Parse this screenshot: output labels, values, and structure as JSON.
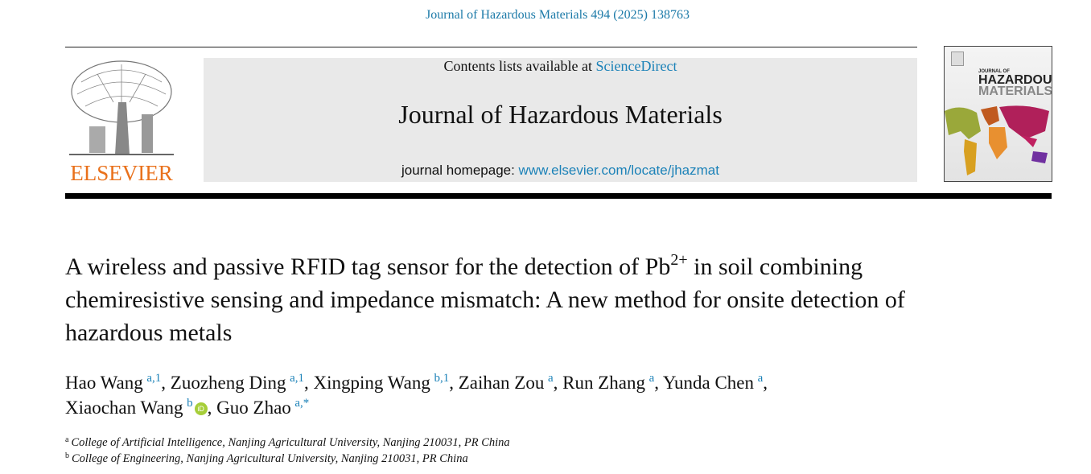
{
  "journal_reference": "Journal of Hazardous Materials 494 (2025) 138763",
  "header": {
    "publisher_logo_text": "ELSEVIER",
    "contents_prefix": "Contents lists available at ",
    "contents_link": "ScienceDirect",
    "journal_title": "Journal of Hazardous Materials",
    "homepage_prefix": "journal homepage: ",
    "homepage_link": "www.elsevier.com/locate/jhazmat",
    "cover_text": "JOURNAL OF HAZARDOUS MATERIALS",
    "colors": {
      "link": "#1c82b8",
      "elsevier_orange": "#e9711c",
      "box_bg": "#e9e9e9"
    }
  },
  "article": {
    "title_part1": "A wireless and passive RFID tag sensor for the detection of Pb",
    "title_sup": "2+",
    "title_part2": " in soil combining chemiresistive sensing and impedance mismatch: A new method for onsite detection of hazardous metals",
    "authors": [
      {
        "name": "Hao Wang",
        "sup": "a,1",
        "sep": ", "
      },
      {
        "name": "Zuozheng Ding",
        "sup": "a,1",
        "sep": ", "
      },
      {
        "name": "Xingping Wang",
        "sup": "b,1",
        "sep": ", "
      },
      {
        "name": "Zaihan Zou",
        "sup": "a",
        "sep": ", "
      },
      {
        "name": "Run Zhang",
        "sup": "a",
        "sep": ", "
      },
      {
        "name": "Yunda Chen",
        "sup": "a",
        "sep": ", "
      },
      {
        "name": "Xiaochan Wang",
        "sup": "b",
        "sep": ", "
      },
      {
        "name": "Guo Zhao",
        "sup": "a,*",
        "sep": ""
      }
    ],
    "orcid_label": "iD",
    "affiliations": [
      {
        "mark": "a",
        "text": "College of Artificial Intelligence, Nanjing Agricultural University, Nanjing 210031, PR China"
      },
      {
        "mark": "b",
        "text": "College of Engineering, Nanjing Agricultural University, Nanjing 210031, PR China"
      }
    ]
  }
}
